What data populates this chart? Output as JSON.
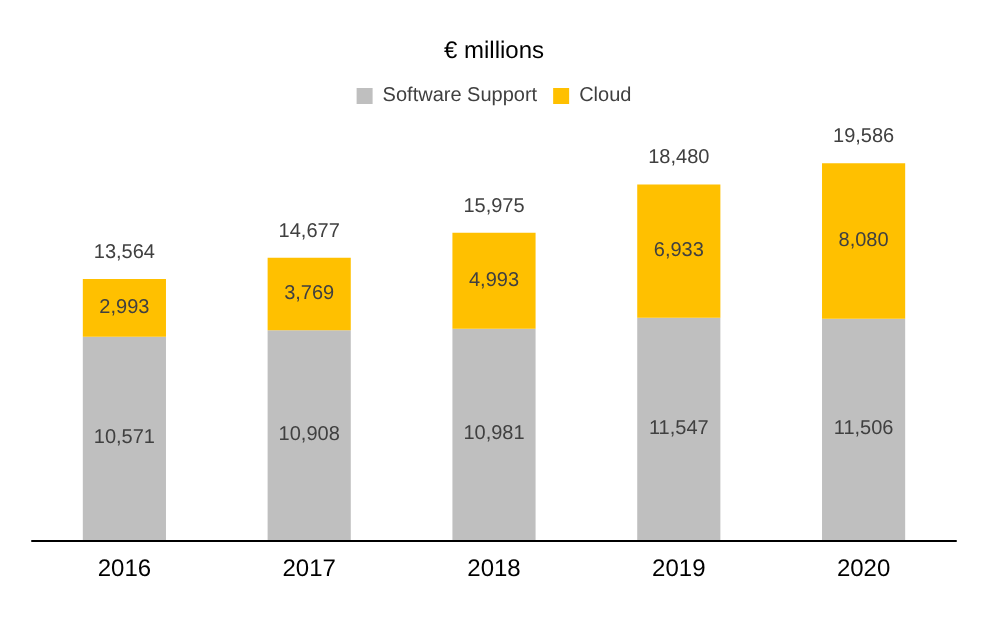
{
  "chart_data": {
    "type": "bar",
    "title": "€ millions",
    "categories": [
      "2016",
      "2017",
      "2018",
      "2019",
      "2020"
    ],
    "stacked": true,
    "legend": "top",
    "series": [
      {
        "name": "Software Support",
        "color": "#bfbfbf",
        "values": [
          10571,
          10908,
          10981,
          11547,
          11506
        ],
        "value_labels": [
          "10,571",
          "10,908",
          "10,981",
          "11,547",
          "11,506"
        ]
      },
      {
        "name": "Cloud",
        "color": "#ffc000",
        "values": [
          2993,
          3769,
          4993,
          6933,
          8080
        ],
        "value_labels": [
          "2,993",
          "3,769",
          "4,993",
          "6,933",
          "8,080"
        ]
      }
    ],
    "totals": [
      "13,564",
      "14,677",
      "15,975",
      "18,480",
      "19,586"
    ]
  }
}
